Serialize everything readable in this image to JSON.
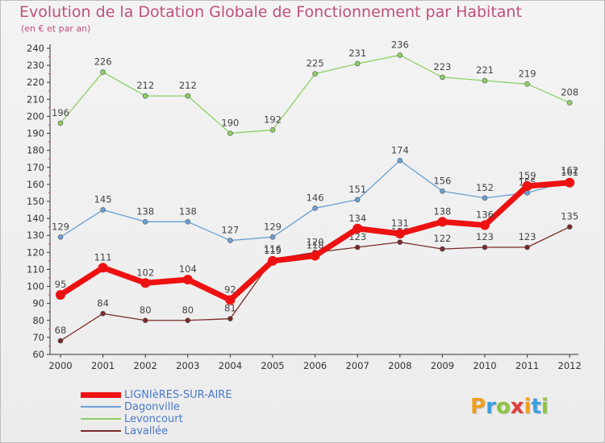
{
  "header": {
    "title": "Evolution de la Dotation Globale de Fonctionnement par Habitant",
    "subtitle": "(en € et par an)"
  },
  "brand": {
    "letters": [
      "P",
      "r",
      "o",
      "x",
      "i",
      "t",
      "i"
    ],
    "colors": [
      "#f0a020",
      "#3aa0e0",
      "#8cc43c",
      "#e03c3c",
      "#f0a020",
      "#3aa0e0",
      "#8cc43c"
    ]
  },
  "chart_data": {
    "type": "line",
    "x": [
      "2000",
      "2001",
      "2002",
      "2003",
      "2004",
      "2005",
      "2006",
      "2007",
      "2008",
      "2009",
      "2010",
      "2011",
      "2012"
    ],
    "ylim": [
      60,
      240
    ],
    "yticks": [
      "60",
      "70",
      "80",
      "90",
      "100",
      "110",
      "120",
      "130",
      "140",
      "150",
      "160",
      "170",
      "180",
      "190",
      "200",
      "210",
      "220",
      "230",
      "240"
    ],
    "grid": false,
    "legend_position": "bottom-left",
    "series": [
      {
        "name": "Levoncourt",
        "color": "#8cd065",
        "width": 1.3,
        "marker": 3,
        "values": [
          196,
          226,
          212,
          212,
          190,
          192,
          225,
          231,
          236,
          223,
          221,
          219,
          208
        ],
        "labels": [
          "196",
          "226",
          "212",
          "212",
          "190",
          "192",
          "225",
          "231",
          "236",
          "223",
          "221",
          "219",
          "208"
        ]
      },
      {
        "name": "Dagonville",
        "color": "#6a9fd4",
        "width": 1.3,
        "marker": 3,
        "values": [
          129,
          145,
          138,
          138,
          127,
          129,
          146,
          151,
          174,
          156,
          152,
          155,
          162
        ],
        "labels": [
          "129",
          "145",
          "138",
          "138",
          "127",
          "129",
          "146",
          "151",
          "174",
          "156",
          "152",
          "155",
          "162"
        ]
      },
      {
        "name": "Lavallée",
        "color": "#7a2a2a",
        "width": 1.3,
        "marker": 3,
        "values": [
          68,
          84,
          80,
          80,
          81,
          116,
          120,
          123,
          126,
          122,
          123,
          123,
          135
        ],
        "labels": [
          "68",
          "84",
          "80",
          "80",
          "81",
          "116",
          "120",
          "123",
          "126",
          "122",
          "123",
          "123",
          "135"
        ]
      },
      {
        "name": "LIGNIèRES-SUR-AIRE",
        "color": "#ee1111",
        "width": 7,
        "marker": 6,
        "values": [
          95,
          111,
          102,
          104,
          92,
          115,
          118,
          134,
          131,
          138,
          136,
          159,
          161
        ],
        "labels": [
          "95",
          "111",
          "102",
          "104",
          "92",
          "115",
          "118",
          "134",
          "131",
          "138",
          "136",
          "159",
          "161"
        ]
      }
    ],
    "legend_order": [
      "LIGNIèRES-SUR-AIRE",
      "Dagonville",
      "Levoncourt",
      "Lavallée"
    ]
  }
}
